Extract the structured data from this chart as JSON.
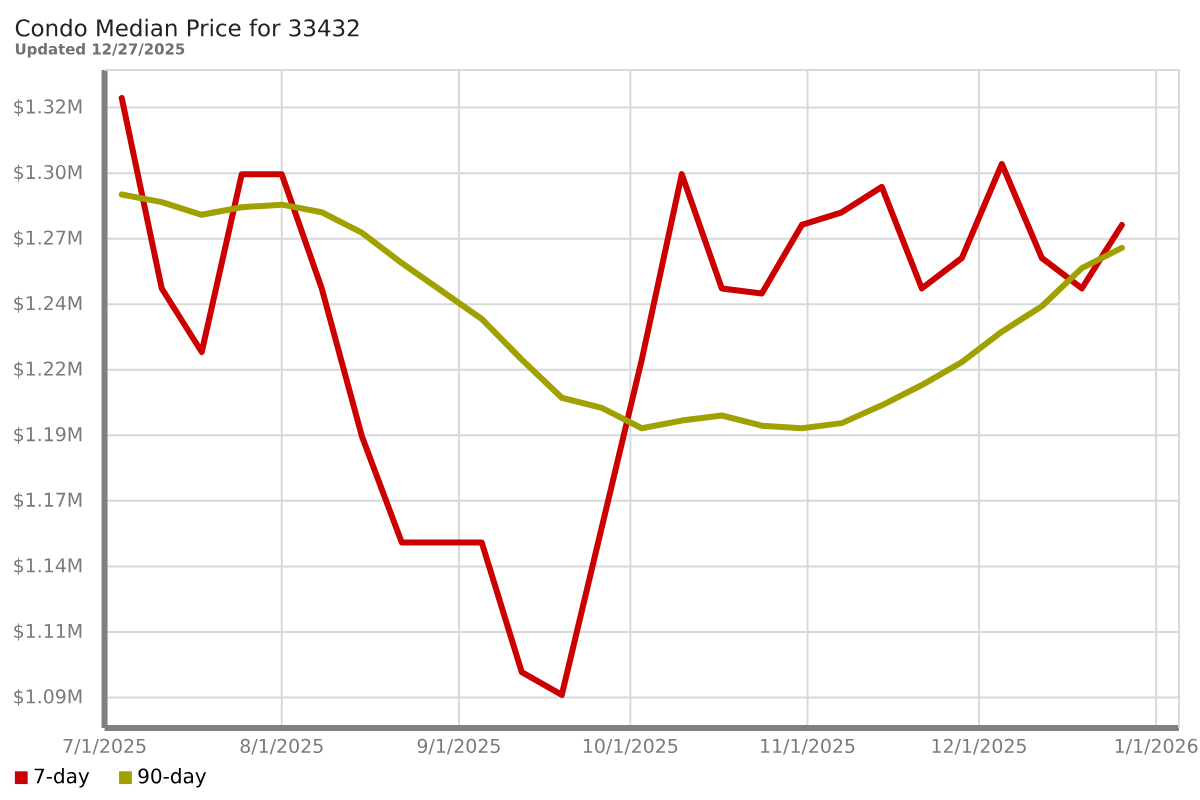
{
  "chart_data": {
    "type": "line",
    "title": "Condo Median Price for 33432",
    "subtitle": "Updated 12/27/2025",
    "x": [
      "2025-07-04",
      "2025-07-11",
      "2025-07-18",
      "2025-07-25",
      "2025-08-01",
      "2025-08-08",
      "2025-08-15",
      "2025-08-22",
      "2025-08-29",
      "2025-09-05",
      "2025-09-12",
      "2025-09-19",
      "2025-09-26",
      "2025-10-03",
      "2025-10-10",
      "2025-10-17",
      "2025-10-24",
      "2025-10-31",
      "2025-11-07",
      "2025-11-14",
      "2025-11-21",
      "2025-11-28",
      "2025-12-05",
      "2025-12-12",
      "2025-12-19",
      "2025-12-26"
    ],
    "series": [
      {
        "name": "7-day",
        "color": "#cc0000",
        "values": [
          1.325,
          1.25,
          1.225,
          1.295,
          1.295,
          1.25,
          1.192,
          1.15,
          1.15,
          1.15,
          1.099,
          1.09,
          1.156,
          1.222,
          1.295,
          1.25,
          1.248,
          1.275,
          1.28,
          1.29,
          1.25,
          1.262,
          1.299,
          1.262,
          1.25,
          1.275
        ]
      },
      {
        "name": "90-day",
        "color": "#a0a000",
        "values": [
          1.287,
          1.284,
          1.279,
          1.282,
          1.283,
          1.28,
          1.272,
          1.26,
          1.249,
          1.238,
          1.222,
          1.207,
          1.203,
          1.195,
          1.198,
          1.2,
          1.196,
          1.195,
          1.197,
          1.204,
          1.212,
          1.221,
          1.233,
          1.243,
          1.258,
          1.266
        ]
      }
    ],
    "xlim": [
      "2025-07-01",
      "2026-01-05"
    ],
    "xticks": [
      {
        "value": "2025-07-01",
        "label": "7/1/2025"
      },
      {
        "value": "2025-08-01",
        "label": "8/1/2025"
      },
      {
        "value": "2025-09-01",
        "label": "9/1/2025"
      },
      {
        "value": "2025-10-01",
        "label": "10/1/2025"
      },
      {
        "value": "2025-11-01",
        "label": "11/1/2025"
      },
      {
        "value": "2025-12-01",
        "label": "12/1/2025"
      },
      {
        "value": "2026-01-01",
        "label": "1/1/2026"
      }
    ],
    "ylim": [
      1.077,
      1.336
    ],
    "yticks": [
      {
        "value": 1.089,
        "label": "$1.09M"
      },
      {
        "value": 1.1148,
        "label": "$1.11M"
      },
      {
        "value": 1.1406,
        "label": "$1.14M"
      },
      {
        "value": 1.1664,
        "label": "$1.17M"
      },
      {
        "value": 1.1922,
        "label": "$1.19M"
      },
      {
        "value": 1.218,
        "label": "$1.22M"
      },
      {
        "value": 1.2438,
        "label": "$1.24M"
      },
      {
        "value": 1.2696,
        "label": "$1.27M"
      },
      {
        "value": 1.2954,
        "label": "$1.30M"
      },
      {
        "value": 1.3212,
        "label": "$1.32M"
      }
    ],
    "grid": true,
    "legend": "bottom left"
  }
}
